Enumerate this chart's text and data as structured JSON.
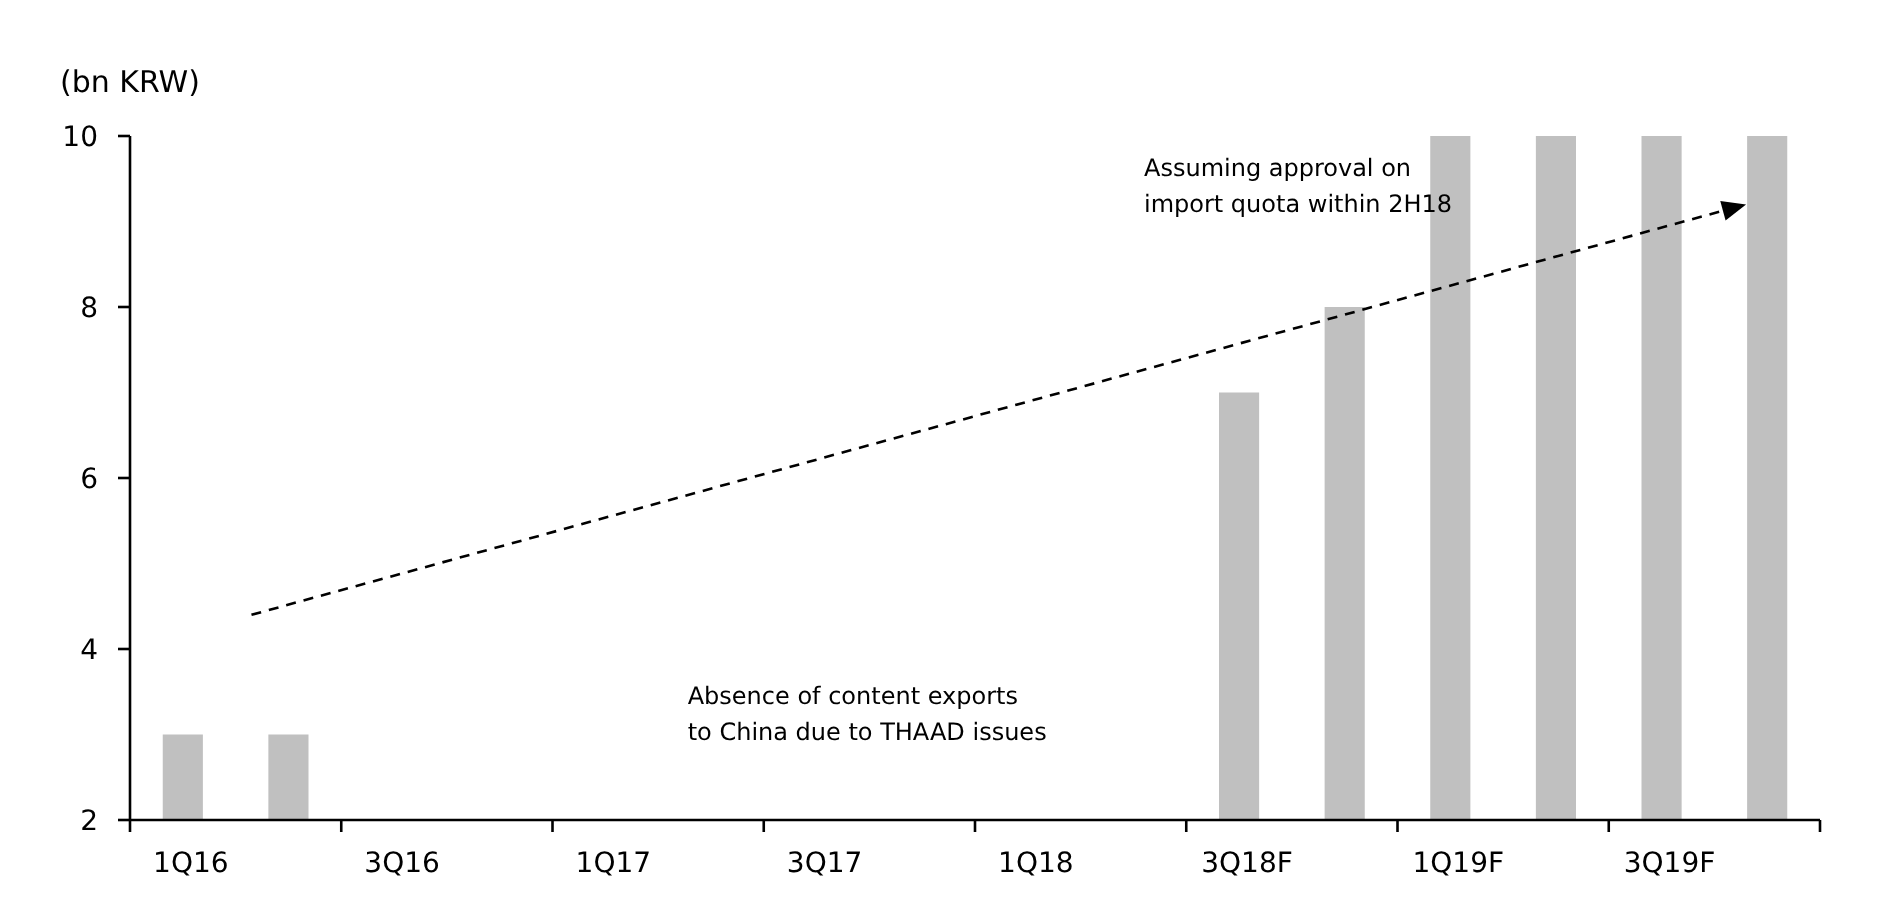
{
  "chart_data": {
    "type": "bar",
    "ylabel": "(bn KRW)",
    "categories": [
      "1Q16",
      null,
      "3Q16",
      null,
      "1Q17",
      null,
      "3Q17",
      null,
      "1Q18",
      null,
      "3Q18F",
      null,
      "1Q19F",
      null,
      "3Q19F",
      null
    ],
    "values": [
      3,
      3,
      2,
      2,
      2,
      2,
      2,
      2,
      2,
      2,
      7,
      8,
      10,
      10,
      10,
      10
    ],
    "color": "#c0c0c0",
    "ylim": [
      2,
      10
    ],
    "yticks": [
      2,
      4,
      6,
      8,
      10
    ],
    "grid": false,
    "annotations": [
      "Assuming approval on\nimport quota within 2H18",
      "Absence of content exports\nto China due to THAAD issues"
    ]
  }
}
